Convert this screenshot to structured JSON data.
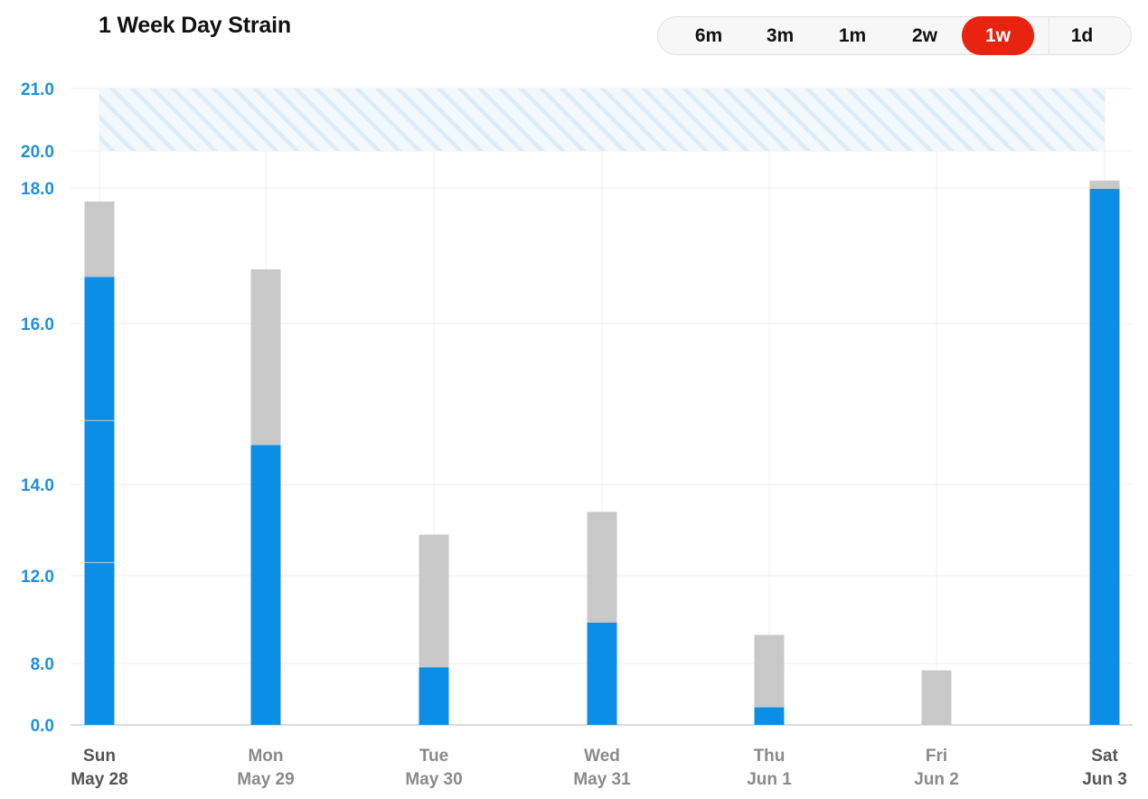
{
  "title": "1 Week Day Strain",
  "ranges": [
    "6m",
    "3m",
    "1m",
    "2w",
    "1w",
    "1d"
  ],
  "active_range": "1w",
  "colors": {
    "accent": "#e8230f",
    "bar_blue": "#0b8fe6",
    "bar_gray": "#c8c8c8",
    "axis_text": "#1f8fde",
    "band": "#dcecf9"
  },
  "chart_data": {
    "type": "bar",
    "stacked": true,
    "y_ticks": [
      0.0,
      8.0,
      12.0,
      14.0,
      16.0,
      18.0,
      20.0,
      21.0
    ],
    "y_tick_labels": [
      "0.0",
      "8.0",
      "12.0",
      "14.0",
      "16.0",
      "18.0",
      "20.0",
      "21.0"
    ],
    "ylim": [
      0,
      21
    ],
    "highlight_band": [
      20.0,
      21.0
    ],
    "grid": true,
    "categories": [
      {
        "day": "Sun",
        "date": "May 28",
        "total": 17.8,
        "blue_segments": [
          12.3,
          14.8,
          16.7
        ]
      },
      {
        "day": "Mon",
        "date": "May 29",
        "total": 16.8,
        "blue_segments": [
          14.5
        ]
      },
      {
        "day": "Tue",
        "date": "May 30",
        "total": 12.9,
        "blue_segments": [
          7.6
        ]
      },
      {
        "day": "Wed",
        "date": "May 31",
        "total": 13.4,
        "blue_segments": [
          9.9
        ]
      },
      {
        "day": "Thu",
        "date": "Jun 1",
        "total": 9.3,
        "blue_segments": [
          2.4
        ]
      },
      {
        "day": "Fri",
        "date": "Jun 2",
        "total": 7.1,
        "blue_segments": []
      },
      {
        "day": "Sat",
        "date": "Jun 3",
        "total": 18.4,
        "blue_segments": [
          18.0
        ]
      }
    ]
  }
}
